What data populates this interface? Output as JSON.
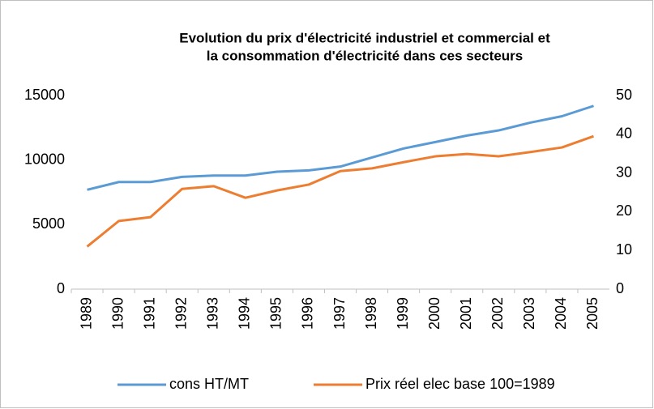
{
  "chart_data": {
    "type": "line",
    "title": [
      "Evolution du prix d'électricité industriel et commercial et",
      "la consommation d'électricité dans ces secteurs"
    ],
    "categories": [
      "1989",
      "1990",
      "1991",
      "1992",
      "1993",
      "1994",
      "1995",
      "1996",
      "1997",
      "1998",
      "1999",
      "2000",
      "2001",
      "2002",
      "2003",
      "2004",
      "2005"
    ],
    "series": [
      {
        "name": "cons HT/MT",
        "color": "#5b9bd5",
        "values": [
          7700,
          8300,
          8300,
          8700,
          8800,
          8800,
          9100,
          9200,
          9500,
          10200,
          10900,
          11400,
          11900,
          12300,
          12900,
          13400,
          14200
        ]
      },
      {
        "name": "Prix réel elec base 100=1989",
        "color": "#ed7d31",
        "axis": "y2",
        "values": [
          11,
          17.6,
          18.6,
          25.9,
          26.6,
          23.6,
          25.5,
          27,
          30.5,
          31.2,
          32.8,
          34.3,
          34.9,
          34.3,
          35.4,
          36.6,
          39.5
        ]
      }
    ],
    "ylim": [
      0,
      15000
    ],
    "yticks": [
      0,
      5000,
      10000,
      15000
    ],
    "y2lim": [
      0,
      50
    ],
    "y2ticks": [
      0,
      10,
      20,
      30,
      40,
      50
    ],
    "grid": false,
    "legend": "bottom"
  }
}
